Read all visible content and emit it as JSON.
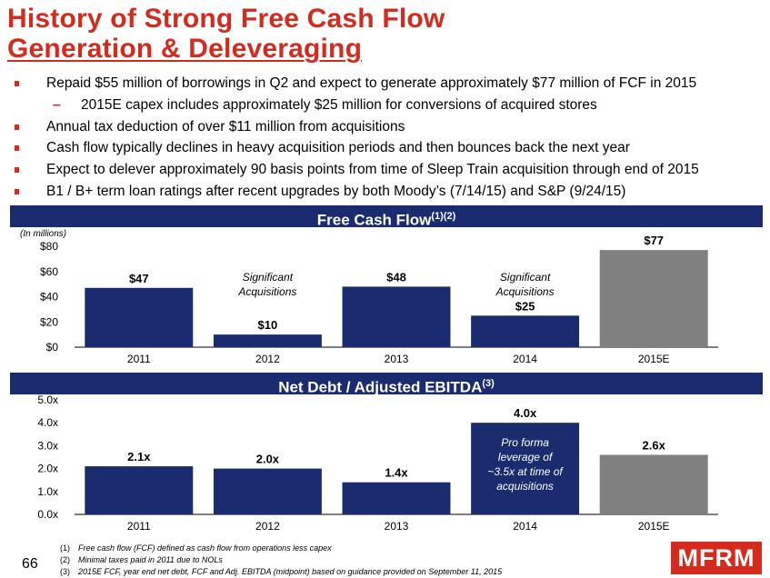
{
  "title": {
    "line1": "History of Strong Free Cash Flow",
    "line2": "Generation & Deleveraging"
  },
  "bullets": [
    {
      "level": 1,
      "text": "Repaid $55 million of borrowings in Q2 and expect to generate approximately $77 million of FCF in 2015"
    },
    {
      "level": 2,
      "text": "2015E capex includes approximately $25 million for conversions of acquired stores"
    },
    {
      "level": 1,
      "text": "Annual tax deduction of over $11 million from acquisitions"
    },
    {
      "level": 1,
      "text": "Cash flow typically declines in heavy acquisition periods and then bounces back the next year"
    },
    {
      "level": 1,
      "text": "Expect to delever approximately 90 basis points from time of Sleep Train acquisition through end of 2015"
    },
    {
      "level": 1,
      "text": "B1 / B+ term loan ratings after recent upgrades by both Moody’s (7/14/15) and S&P (9/24/15)"
    }
  ],
  "chart_data": [
    {
      "type": "bar",
      "title": "Free Cash Flow",
      "title_superscript": "(1)(2)",
      "unit_note": "(In millions)",
      "categories": [
        "2011",
        "2012",
        "2013",
        "2014",
        "2015E"
      ],
      "values": [
        47,
        10,
        48,
        25,
        77
      ],
      "value_labels": [
        "$47",
        "$10",
        "$48",
        "$25",
        "$77"
      ],
      "y_ticks": [
        0,
        20,
        40,
        60,
        80
      ],
      "y_tick_labels": [
        "$0",
        "$20",
        "$40",
        "$60",
        "$80"
      ],
      "ylim": [
        0,
        80
      ],
      "bar_colors": [
        "#1b2b6f",
        "#1b2b6f",
        "#1b2b6f",
        "#1b2b6f",
        "#808080"
      ],
      "annotations": [
        {
          "category": "2012",
          "line1": "Significant",
          "line2": "Acquisitions"
        },
        {
          "category": "2014",
          "line1": "Significant",
          "line2": "Acquisitions"
        }
      ],
      "grid": false
    },
    {
      "type": "bar",
      "title": "Net Debt / Adjusted EBITDA",
      "title_superscript": "(3)",
      "categories": [
        "2011",
        "2012",
        "2013",
        "2014",
        "2015E"
      ],
      "values": [
        2.1,
        2.0,
        1.4,
        4.0,
        2.6
      ],
      "value_labels": [
        "2.1x",
        "2.0x",
        "1.4x",
        "4.0x",
        "2.6x"
      ],
      "y_ticks": [
        0,
        1,
        2,
        3,
        4,
        5
      ],
      "y_tick_labels": [
        "0.0x",
        "1.0x",
        "2.0x",
        "3.0x",
        "4.0x",
        "5.0x"
      ],
      "ylim": [
        0,
        5
      ],
      "bar_colors": [
        "#1b2b6f",
        "#1b2b6f",
        "#1b2b6f",
        "#1b2b6f",
        "#808080"
      ],
      "annotations": [
        {
          "category": "2014",
          "lines": [
            "Pro forma",
            "leverage of",
            "~3.5x at time of",
            "acquisitions"
          ]
        }
      ],
      "grid": false
    }
  ],
  "footnotes": [
    {
      "num": "(1)",
      "text": "Free cash flow (FCF) defined as cash flow from operations less capex"
    },
    {
      "num": "(2)",
      "text": "Minimal taxes paid in 2011 due to NOLs"
    },
    {
      "num": "(3)",
      "text": "2015E FCF, year end net debt, FCF and Adj. EBITDA (midpoint)  based on guidance provided on September 11, 2015"
    }
  ],
  "page_number": "66",
  "logo_text": "MFRM",
  "colors": {
    "title_red": "#d52b1e",
    "navy": "#1b2b6f",
    "gray": "#808080"
  }
}
